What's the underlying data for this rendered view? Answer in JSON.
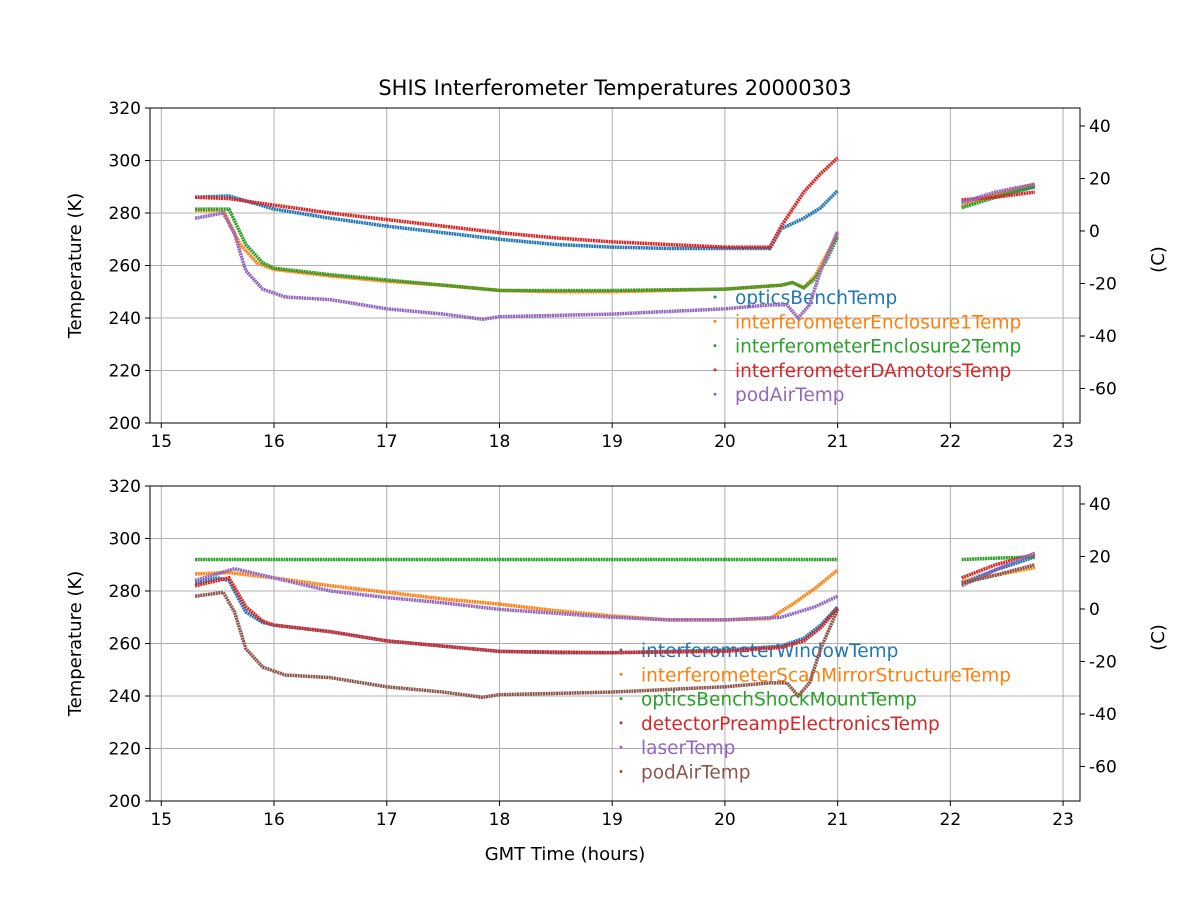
{
  "title": "SHIS Interferometer Temperatures 20000303",
  "chart_data": [
    {
      "type": "line",
      "xlabel": "",
      "ylabel": "Temperature (K)",
      "ylabel_right": "(C)",
      "xlim": [
        14.9,
        23.15
      ],
      "ylim": [
        200,
        320
      ],
      "xticks": [
        15,
        16,
        17,
        18,
        19,
        20,
        21,
        22,
        23
      ],
      "yticks": [
        200,
        220,
        240,
        260,
        280,
        300,
        320
      ],
      "yticks_right": [
        40,
        20,
        0,
        -20,
        -40,
        -60
      ],
      "grid": true,
      "legend_position": "lower-right",
      "series": [
        {
          "name": "opticsBenchTemp",
          "color": "#1f77b4",
          "segments": [
            [
              [
                15.3,
                286
              ],
              [
                15.6,
                286.5
              ],
              [
                15.8,
                284
              ],
              [
                16,
                281.5
              ],
              [
                16.5,
                278
              ],
              [
                17,
                275
              ],
              [
                17.5,
                272.5
              ],
              [
                18,
                270
              ],
              [
                18.5,
                268
              ],
              [
                19,
                267
              ],
              [
                19.5,
                266.5
              ],
              [
                20,
                266.5
              ],
              [
                20.4,
                266.5
              ],
              [
                20.5,
                274
              ],
              [
                20.7,
                278
              ],
              [
                20.85,
                282
              ],
              [
                21,
                288.5
              ]
            ],
            [
              [
                22.1,
                284
              ],
              [
                22.4,
                287
              ],
              [
                22.75,
                290
              ]
            ]
          ]
        },
        {
          "name": "interferometerEnclosure1Temp",
          "color": "#ff7f0e",
          "segments": [
            [
              [
                15.3,
                281
              ],
              [
                15.55,
                281
              ],
              [
                15.7,
                268
              ],
              [
                15.85,
                261
              ],
              [
                16,
                258.5
              ],
              [
                16.5,
                256
              ],
              [
                17,
                254
              ],
              [
                17.5,
                252.5
              ],
              [
                18,
                250.5
              ],
              [
                18.5,
                250
              ],
              [
                19,
                250
              ],
              [
                19.5,
                250.5
              ],
              [
                20,
                251
              ],
              [
                20.5,
                252.5
              ],
              [
                20.6,
                253.5
              ],
              [
                20.7,
                251.5
              ],
              [
                20.8,
                256
              ],
              [
                20.9,
                264
              ],
              [
                21,
                272
              ]
            ],
            [
              [
                22.1,
                282.5
              ],
              [
                22.4,
                287
              ],
              [
                22.75,
                291
              ]
            ]
          ]
        },
        {
          "name": "interferometerEnclosure2Temp",
          "color": "#2ca02c",
          "segments": [
            [
              [
                15.3,
                281.5
              ],
              [
                15.6,
                281.5
              ],
              [
                15.75,
                268
              ],
              [
                15.9,
                261
              ],
              [
                16,
                259
              ],
              [
                16.5,
                256.5
              ],
              [
                17,
                254.5
              ],
              [
                17.5,
                252.5
              ],
              [
                18,
                250.5
              ],
              [
                19,
                250.5
              ],
              [
                20,
                251
              ],
              [
                20.5,
                252.5
              ],
              [
                20.6,
                253.5
              ],
              [
                20.7,
                251.5
              ],
              [
                20.8,
                255
              ],
              [
                20.9,
                262
              ],
              [
                21,
                271
              ]
            ],
            [
              [
                22.1,
                282
              ],
              [
                22.4,
                286
              ],
              [
                22.75,
                290
              ]
            ]
          ]
        },
        {
          "name": "interferometerDAmotorsTemp",
          "color": "#d62728",
          "segments": [
            [
              [
                15.3,
                286
              ],
              [
                15.6,
                285.5
              ],
              [
                16,
                283
              ],
              [
                16.5,
                280
              ],
              [
                17,
                277.5
              ],
              [
                17.5,
                275
              ],
              [
                18,
                272.5
              ],
              [
                18.5,
                270.5
              ],
              [
                19,
                269
              ],
              [
                19.5,
                268
              ],
              [
                20,
                267
              ],
              [
                20.4,
                267
              ],
              [
                20.5,
                275
              ],
              [
                20.7,
                288
              ],
              [
                20.85,
                295
              ],
              [
                21,
                301
              ]
            ],
            [
              [
                22.1,
                285
              ],
              [
                22.4,
                286
              ],
              [
                22.75,
                288
              ]
            ]
          ]
        },
        {
          "name": "podAirTemp",
          "color": "#9467bd",
          "segments": [
            [
              [
                15.3,
                278
              ],
              [
                15.55,
                280
              ],
              [
                15.65,
                272
              ],
              [
                15.75,
                258
              ],
              [
                15.9,
                251
              ],
              [
                16.1,
                248
              ],
              [
                16.5,
                247
              ],
              [
                17,
                243.5
              ],
              [
                17.5,
                241.5
              ],
              [
                17.85,
                239.5
              ],
              [
                18,
                240.5
              ],
              [
                18.5,
                241
              ],
              [
                19,
                241.5
              ],
              [
                19.5,
                242.5
              ],
              [
                20,
                243.5
              ],
              [
                20.4,
                245
              ],
              [
                20.55,
                245
              ],
              [
                20.65,
                240
              ],
              [
                20.75,
                245
              ],
              [
                20.85,
                258
              ],
              [
                21,
                273
              ]
            ],
            [
              [
                22.1,
                284
              ],
              [
                22.4,
                288
              ],
              [
                22.75,
                291
              ]
            ]
          ]
        }
      ]
    },
    {
      "type": "line",
      "xlabel": "GMT Time (hours)",
      "ylabel": "Temperature (K)",
      "ylabel_right": "(C)",
      "xlim": [
        14.9,
        23.15
      ],
      "ylim": [
        200,
        320
      ],
      "xticks": [
        15,
        16,
        17,
        18,
        19,
        20,
        21,
        22,
        23
      ],
      "yticks": [
        200,
        220,
        240,
        260,
        280,
        300,
        320
      ],
      "yticks_right": [
        40,
        20,
        0,
        -20,
        -40,
        -60
      ],
      "grid": true,
      "legend_position": "lower-right",
      "series": [
        {
          "name": "interferometerWindowTemp",
          "color": "#1f77b4",
          "segments": [
            [
              [
                15.3,
                283
              ],
              [
                15.5,
                285
              ],
              [
                15.6,
                284
              ],
              [
                15.75,
                272
              ],
              [
                15.9,
                268
              ],
              [
                16,
                267
              ],
              [
                16.5,
                264.5
              ],
              [
                17,
                261
              ],
              [
                17.5,
                259
              ],
              [
                18,
                257
              ],
              [
                18.5,
                256.5
              ],
              [
                19,
                256.5
              ],
              [
                19.5,
                257
              ],
              [
                20,
                257.5
              ],
              [
                20.5,
                259
              ],
              [
                20.7,
                262
              ],
              [
                20.85,
                267
              ],
              [
                21,
                274
              ]
            ],
            [
              [
                22.1,
                283
              ],
              [
                22.4,
                288
              ],
              [
                22.75,
                293
              ]
            ]
          ]
        },
        {
          "name": "interferometerScanMirrorStructureTemp",
          "color": "#ff7f0e",
          "segments": [
            [
              [
                15.3,
                286.5
              ],
              [
                15.6,
                287
              ],
              [
                16,
                285
              ],
              [
                16.5,
                282
              ],
              [
                17,
                279.5
              ],
              [
                17.5,
                277
              ],
              [
                18,
                275
              ],
              [
                18.5,
                272.5
              ],
              [
                19,
                270.5
              ],
              [
                19.5,
                269
              ],
              [
                20,
                269
              ],
              [
                20.4,
                269.5
              ],
              [
                20.6,
                275
              ],
              [
                20.8,
                281
              ],
              [
                21,
                288
              ]
            ],
            [
              [
                22.1,
                283.5
              ],
              [
                22.4,
                286
              ],
              [
                22.75,
                289
              ]
            ]
          ]
        },
        {
          "name": "opticsBenchShockMountTemp",
          "color": "#2ca02c",
          "segments": [
            [
              [
                15.3,
                292
              ],
              [
                16,
                292
              ],
              [
                17,
                292
              ],
              [
                18,
                292
              ],
              [
                19,
                292
              ],
              [
                20,
                292
              ],
              [
                21,
                292
              ]
            ],
            [
              [
                22.1,
                292
              ],
              [
                22.4,
                292.5
              ],
              [
                22.75,
                293
              ]
            ]
          ]
        },
        {
          "name": "detectorPreampElectronicsTemp",
          "color": "#d62728",
          "segments": [
            [
              [
                15.3,
                282
              ],
              [
                15.6,
                285
              ],
              [
                15.75,
                274
              ],
              [
                15.9,
                268.5
              ],
              [
                16,
                267
              ],
              [
                16.5,
                264.5
              ],
              [
                17,
                261
              ],
              [
                17.5,
                259
              ],
              [
                18,
                257
              ],
              [
                19,
                256.5
              ],
              [
                20,
                257
              ],
              [
                20.5,
                258.5
              ],
              [
                20.7,
                261
              ],
              [
                20.85,
                266
              ],
              [
                21,
                273.5
              ]
            ],
            [
              [
                22.1,
                285
              ],
              [
                22.4,
                290
              ],
              [
                22.75,
                294
              ]
            ]
          ]
        },
        {
          "name": "laserTemp",
          "color": "#9467bd",
          "segments": [
            [
              [
                15.3,
                284
              ],
              [
                15.65,
                288.5
              ],
              [
                16,
                285
              ],
              [
                16.5,
                280
              ],
              [
                17,
                277.5
              ],
              [
                17.5,
                275.5
              ],
              [
                18,
                273
              ],
              [
                18.5,
                271.5
              ],
              [
                19,
                270
              ],
              [
                19.5,
                269
              ],
              [
                20,
                269
              ],
              [
                20.5,
                270
              ],
              [
                20.8,
                274
              ],
              [
                21,
                278
              ]
            ],
            [
              [
                22.1,
                282
              ],
              [
                22.4,
                288
              ],
              [
                22.75,
                294.5
              ]
            ]
          ]
        },
        {
          "name": "podAirTemp",
          "color": "#8c564b",
          "segments": [
            [
              [
                15.3,
                278
              ],
              [
                15.55,
                279.5
              ],
              [
                15.65,
                272
              ],
              [
                15.75,
                258
              ],
              [
                15.9,
                251
              ],
              [
                16.1,
                248
              ],
              [
                16.5,
                247
              ],
              [
                17,
                243.5
              ],
              [
                17.5,
                241.5
              ],
              [
                17.85,
                239.5
              ],
              [
                18,
                240.5
              ],
              [
                18.5,
                241
              ],
              [
                19,
                241.5
              ],
              [
                19.5,
                242.5
              ],
              [
                20,
                243.5
              ],
              [
                20.4,
                245
              ],
              [
                20.55,
                245
              ],
              [
                20.65,
                240
              ],
              [
                20.75,
                245
              ],
              [
                20.85,
                258
              ],
              [
                21,
                273
              ]
            ],
            [
              [
                22.1,
                283
              ],
              [
                22.4,
                286
              ],
              [
                22.75,
                290
              ]
            ]
          ]
        }
      ]
    }
  ]
}
